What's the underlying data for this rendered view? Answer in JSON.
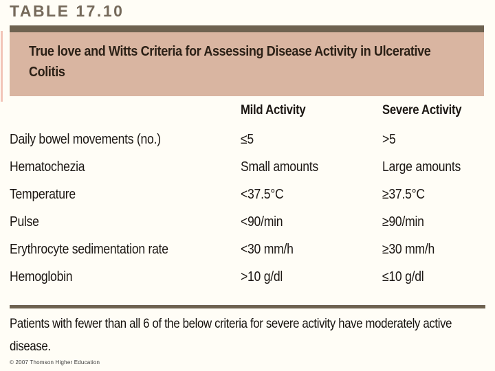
{
  "figure": {
    "label": "TABLE 17.10",
    "copyright": "© 2007 Thomson Higher Education"
  },
  "table": {
    "title": "True love and Witts Criteria for Assessing Disease Activity in Ulcerative Colitis",
    "column_headers": [
      "Mild Activity",
      "Severe Activity"
    ],
    "rows": [
      {
        "criterion": "Daily bowel movements (no.)",
        "mild": "≤5",
        "severe": ">5"
      },
      {
        "criterion": "Hematochezia",
        "mild": "Small amounts",
        "severe": "Large amounts"
      },
      {
        "criterion": "Temperature",
        "mild": "<37.5°C",
        "severe": "≥37.5°C"
      },
      {
        "criterion": "Pulse",
        "mild": "<90/min",
        "severe": "≥90/min"
      },
      {
        "criterion": "Erythrocyte sedimentation rate",
        "mild": "<30 mm/h",
        "severe": "≥30 mm/h"
      },
      {
        "criterion": "Hemoglobin",
        "mild": ">10 g/dl",
        "severe": "≤10 g/dl"
      }
    ],
    "footnote": "Patients with fewer than all 6 of the below criteria for severe activity have moderately active disease."
  },
  "colors": {
    "band_background": "#d9b5a1",
    "rule_dark": "#6e6250",
    "table_label_text": "#75695a",
    "left_accent": "#f2c5b8",
    "body_text": "#1d1814"
  }
}
